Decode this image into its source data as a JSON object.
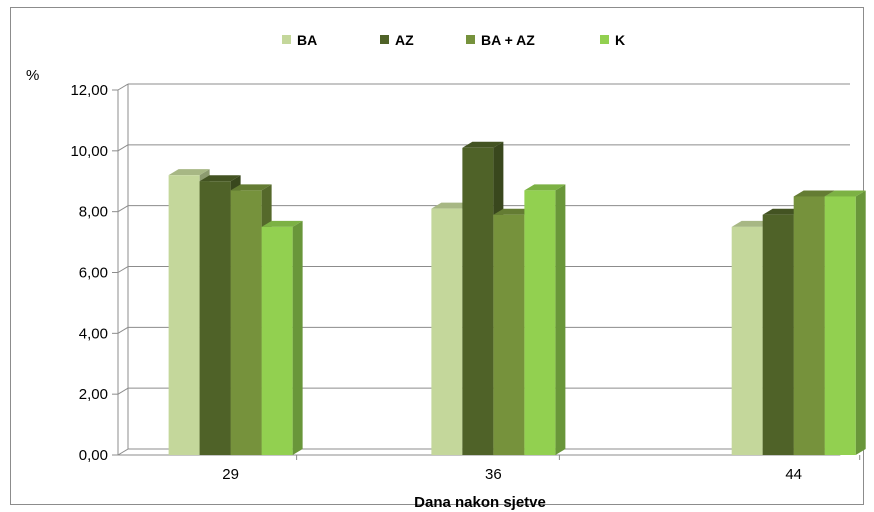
{
  "chart_data": {
    "type": "bar",
    "title": "",
    "xlabel": "Dana nakon sjetve",
    "ylabel": "%",
    "categories": [
      "29",
      "36",
      "44"
    ],
    "x_positions": [
      29,
      36,
      44
    ],
    "xlim": [
      26,
      45.5
    ],
    "ylim": [
      0,
      12
    ],
    "y_ticks": [
      "0,00",
      "2,00",
      "4,00",
      "6,00",
      "8,00",
      "10,00",
      "12,00"
    ],
    "y_tick_values": [
      0,
      2,
      4,
      6,
      8,
      10,
      12
    ],
    "grid": true,
    "legend_position": "top",
    "series": [
      {
        "name": "BA",
        "color": "#c4d79b",
        "values": [
          9.2,
          8.1,
          7.5
        ]
      },
      {
        "name": "AZ",
        "color": "#4f6228",
        "values": [
          9.0,
          10.1,
          7.9
        ]
      },
      {
        "name": "BA + AZ",
        "color": "#76923c",
        "values": [
          8.7,
          7.9,
          8.5
        ]
      },
      {
        "name": "K",
        "color": "#92d050",
        "values": [
          7.5,
          8.7,
          8.5
        ]
      }
    ]
  }
}
